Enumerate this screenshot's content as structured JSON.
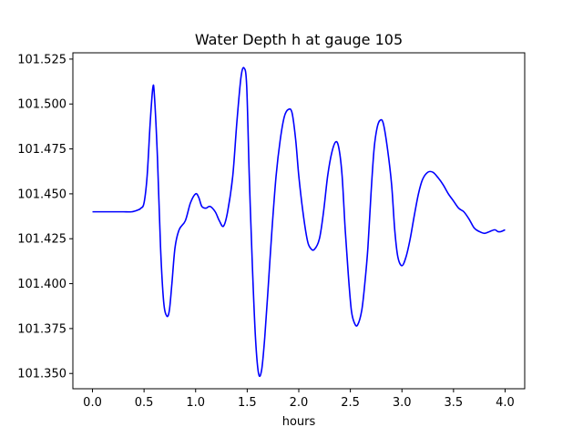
{
  "chart_data": {
    "type": "line",
    "title": "Water Depth h at gauge 105",
    "xlabel": "hours",
    "ylabel": "",
    "xlim": [
      -0.19,
      4.19
    ],
    "ylim": [
      101.3415,
      101.5285
    ],
    "grid": false,
    "line_color": "#0000ff",
    "xticks": [
      0.0,
      0.5,
      1.0,
      1.5,
      2.0,
      2.5,
      3.0,
      3.5,
      4.0
    ],
    "xtick_labels": [
      "0.0",
      "0.5",
      "1.0",
      "1.5",
      "2.0",
      "2.5",
      "3.0",
      "3.5",
      "4.0"
    ],
    "yticks": [
      101.35,
      101.375,
      101.4,
      101.425,
      101.45,
      101.475,
      101.5,
      101.525
    ],
    "ytick_labels": [
      "101.350",
      "101.375",
      "101.400",
      "101.425",
      "101.450",
      "101.475",
      "101.500",
      "101.525"
    ],
    "series": [
      {
        "x": [
          0.0,
          0.1,
          0.2,
          0.3,
          0.38,
          0.44,
          0.47,
          0.5,
          0.53,
          0.56,
          0.585,
          0.6,
          0.63,
          0.66,
          0.69,
          0.72,
          0.745,
          0.77,
          0.8,
          0.84,
          0.9,
          0.95,
          1.0,
          1.03,
          1.06,
          1.1,
          1.14,
          1.19,
          1.23,
          1.27,
          1.31,
          1.36,
          1.4,
          1.44,
          1.47,
          1.495,
          1.52,
          1.55,
          1.58,
          1.61,
          1.64,
          1.67,
          1.7,
          1.74,
          1.78,
          1.82,
          1.86,
          1.9,
          1.935,
          1.97,
          2.0,
          2.04,
          2.08,
          2.11,
          2.15,
          2.2,
          2.24,
          2.28,
          2.32,
          2.36,
          2.39,
          2.42,
          2.45,
          2.48,
          2.51,
          2.54,
          2.57,
          2.61,
          2.64,
          2.67,
          2.7,
          2.73,
          2.76,
          2.79,
          2.82,
          2.86,
          2.9,
          2.93,
          2.96,
          3.0,
          3.04,
          3.08,
          3.12,
          3.16,
          3.2,
          3.25,
          3.3,
          3.35,
          3.4,
          3.45,
          3.5,
          3.55,
          3.6,
          3.65,
          3.7,
          3.75,
          3.8,
          3.85,
          3.9,
          3.93,
          3.96,
          4.0
        ],
        "y": [
          101.44,
          101.44,
          101.44,
          101.44,
          101.44,
          101.441,
          101.442,
          101.445,
          101.46,
          101.49,
          101.509,
          101.505,
          101.47,
          101.42,
          101.39,
          101.382,
          101.385,
          101.4,
          101.42,
          101.43,
          101.435,
          101.445,
          101.45,
          101.448,
          101.443,
          101.442,
          101.443,
          101.44,
          101.435,
          101.432,
          101.44,
          101.46,
          101.49,
          101.515,
          101.52,
          101.51,
          101.46,
          101.41,
          101.37,
          101.35,
          101.352,
          101.37,
          101.395,
          101.43,
          101.46,
          101.48,
          101.493,
          101.497,
          101.495,
          101.48,
          101.46,
          101.44,
          101.425,
          101.42,
          101.419,
          101.425,
          101.44,
          101.46,
          101.473,
          101.479,
          101.475,
          101.46,
          101.43,
          101.405,
          101.385,
          101.378,
          101.377,
          101.385,
          101.4,
          101.42,
          101.45,
          101.475,
          101.487,
          101.491,
          101.489,
          101.475,
          101.455,
          101.43,
          101.415,
          101.41,
          101.415,
          101.425,
          101.438,
          101.45,
          101.458,
          101.462,
          101.462,
          101.459,
          101.455,
          101.45,
          101.446,
          101.442,
          101.44,
          101.436,
          101.431,
          101.429,
          101.428,
          101.429,
          101.43,
          101.429,
          101.429,
          101.43
        ]
      }
    ]
  }
}
